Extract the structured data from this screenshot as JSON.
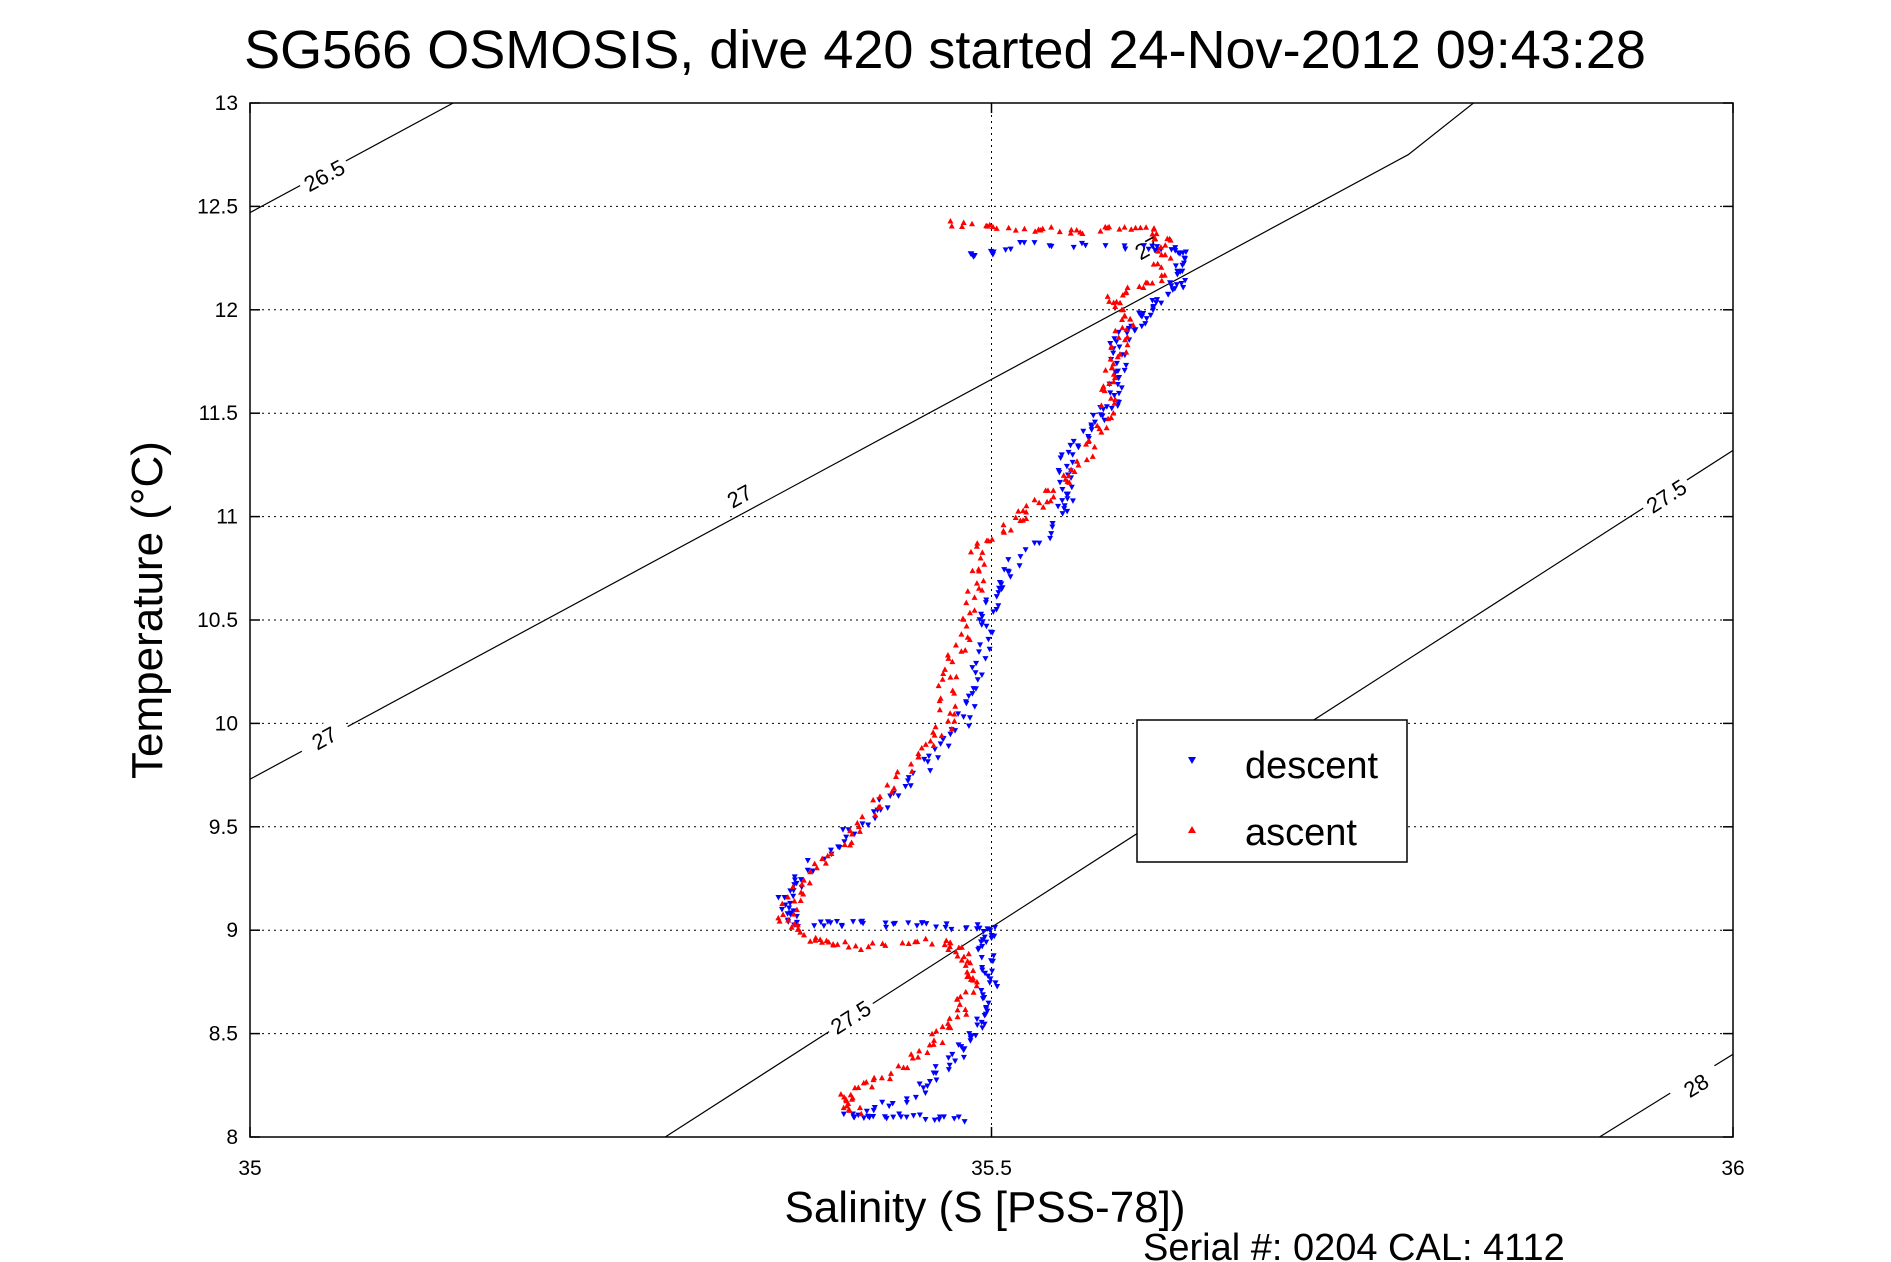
{
  "chart_data": {
    "type": "scatter",
    "title": "SG566 OSMOSIS, dive 420 started 24-Nov-2012 09:43:28",
    "xlabel": "Salinity (S [PSS-78])",
    "ylabel": "Temperature (°C)",
    "xlim": [
      35,
      36
    ],
    "ylim": [
      8,
      13
    ],
    "xticks": [
      "35",
      "35.5",
      "36"
    ],
    "yticks": [
      "8",
      "8.5",
      "9",
      "9.5",
      "10",
      "10.5",
      "11",
      "11.5",
      "12",
      "12.5",
      "13"
    ],
    "grid": true,
    "legend_placement": "center-right",
    "footer": "Serial #: 0204  CAL: 4112",
    "density_contours": [
      {
        "sigma": "26.5",
        "points": [
          [
            35.0,
            12.47
          ],
          [
            35.137,
            13.0
          ]
        ],
        "labels": [
          [
            35.05,
            12.65
          ]
        ]
      },
      {
        "sigma": "27",
        "points": [
          [
            35.0,
            9.73
          ],
          [
            35.781,
            12.75
          ],
          [
            35.825,
            13.0
          ]
        ],
        "labels": [
          [
            35.05,
            9.93
          ],
          [
            35.33,
            11.1
          ],
          [
            35.605,
            12.3
          ]
        ]
      },
      {
        "sigma": "27.5",
        "points": [
          [
            35.28,
            8.0
          ],
          [
            36.0,
            11.32
          ]
        ],
        "labels": [
          [
            35.405,
            8.58
          ],
          [
            35.955,
            11.1
          ]
        ]
      },
      {
        "sigma": "28",
        "points": [
          [
            35.91,
            8.0
          ],
          [
            36.0,
            8.4
          ]
        ],
        "labels": [
          [
            35.975,
            8.25
          ]
        ]
      }
    ],
    "series": [
      {
        "name": "descent",
        "color": "#0000ff",
        "marker": "triangle-down",
        "path": [
          [
            35.48,
            8.08
          ],
          [
            35.44,
            8.1
          ],
          [
            35.4,
            8.1
          ],
          [
            35.45,
            8.2
          ],
          [
            35.47,
            8.35
          ],
          [
            35.49,
            8.48
          ],
          [
            35.495,
            8.62
          ],
          [
            35.5,
            8.78
          ],
          [
            35.495,
            8.92
          ],
          [
            35.5,
            9.01
          ],
          [
            35.46,
            9.02
          ],
          [
            35.41,
            9.03
          ],
          [
            35.37,
            9.03
          ],
          [
            35.36,
            9.12
          ],
          [
            35.37,
            9.25
          ],
          [
            35.4,
            9.45
          ],
          [
            35.43,
            9.62
          ],
          [
            35.46,
            9.82
          ],
          [
            35.48,
            10.0
          ],
          [
            35.49,
            10.2
          ],
          [
            35.495,
            10.45
          ],
          [
            35.5,
            10.6
          ],
          [
            35.51,
            10.75
          ],
          [
            35.55,
            11.0
          ],
          [
            35.55,
            11.15
          ],
          [
            35.55,
            11.3
          ],
          [
            35.57,
            11.45
          ],
          [
            35.58,
            11.55
          ],
          [
            35.585,
            11.7
          ],
          [
            35.585,
            11.85
          ],
          [
            35.6,
            11.95
          ],
          [
            35.61,
            12.05
          ],
          [
            35.63,
            12.15
          ],
          [
            35.63,
            12.28
          ],
          [
            35.61,
            12.3
          ],
          [
            35.52,
            12.32
          ],
          [
            35.48,
            12.25
          ]
        ]
      },
      {
        "name": "ascent",
        "color": "#ff0000",
        "marker": "triangle-up",
        "path": [
          [
            35.41,
            8.12
          ],
          [
            35.4,
            8.2
          ],
          [
            35.43,
            8.3
          ],
          [
            35.46,
            8.45
          ],
          [
            35.48,
            8.6
          ],
          [
            35.485,
            8.75
          ],
          [
            35.48,
            8.87
          ],
          [
            35.47,
            8.95
          ],
          [
            35.41,
            8.92
          ],
          [
            35.38,
            8.95
          ],
          [
            35.36,
            9.05
          ],
          [
            35.37,
            9.2
          ],
          [
            35.4,
            9.4
          ],
          [
            35.42,
            9.6
          ],
          [
            35.45,
            9.85
          ],
          [
            35.47,
            10.0
          ],
          [
            35.47,
            10.2
          ],
          [
            35.48,
            10.4
          ],
          [
            35.49,
            10.65
          ],
          [
            35.49,
            10.85
          ],
          [
            35.52,
            11.0
          ],
          [
            35.54,
            11.1
          ],
          [
            35.56,
            11.25
          ],
          [
            35.575,
            11.45
          ],
          [
            35.58,
            11.65
          ],
          [
            35.585,
            11.8
          ],
          [
            35.59,
            11.95
          ],
          [
            35.58,
            12.05
          ],
          [
            35.61,
            12.15
          ],
          [
            35.62,
            12.32
          ],
          [
            35.6,
            12.4
          ],
          [
            35.56,
            12.38
          ],
          [
            35.51,
            12.4
          ],
          [
            35.47,
            12.42
          ]
        ]
      }
    ]
  }
}
